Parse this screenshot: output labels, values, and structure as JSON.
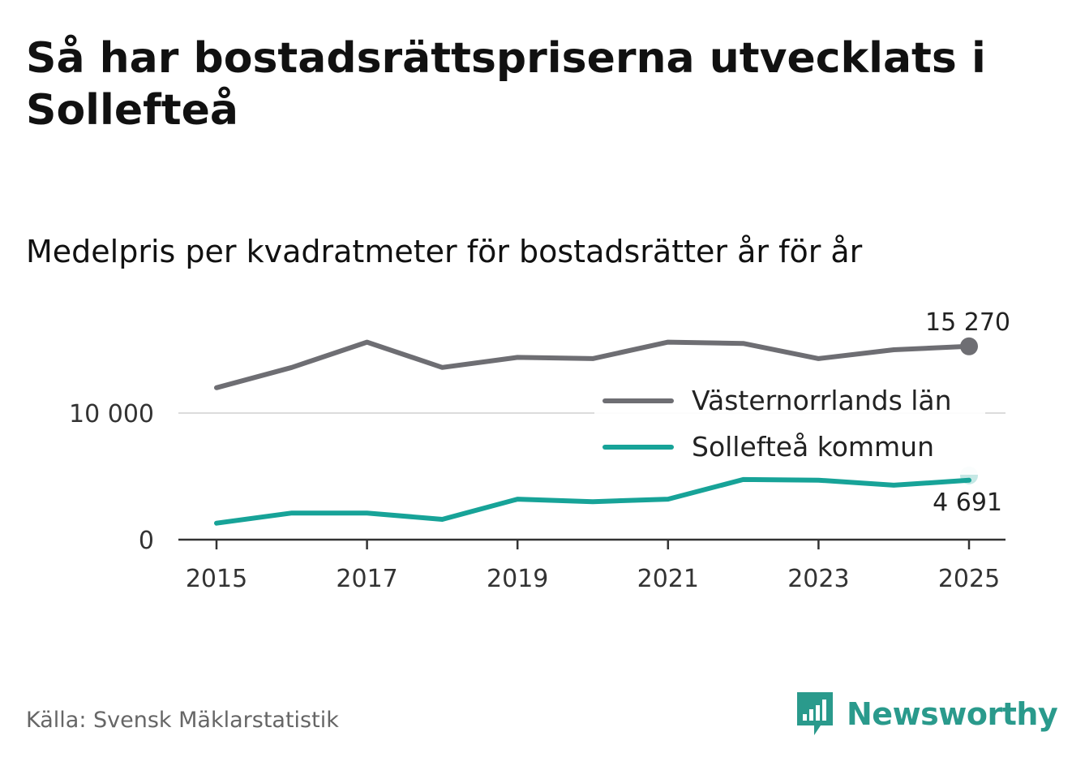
{
  "title": "Så har bostadsrättspriserna utvecklats i Sollefteå",
  "subtitle": "Medelpris per kvadratmeter för bostadsrätter år för år",
  "source": "Källa: Svensk Mäklarstatistik",
  "logo": {
    "text": "Newsworthy",
    "icon": "bar-chart-icon",
    "color": "#2a9a8c"
  },
  "chart_data": {
    "type": "line",
    "x": [
      2015,
      2016,
      2017,
      2018,
      2019,
      2020,
      2021,
      2022,
      2023,
      2024,
      2025
    ],
    "x_ticks": [
      "2015",
      "2017",
      "2019",
      "2021",
      "2023",
      "2025"
    ],
    "y_ticks": [
      {
        "value": 0,
        "label": "0"
      },
      {
        "value": 10000,
        "label": "10 000"
      }
    ],
    "ylim": [
      0,
      16500
    ],
    "grid": true,
    "legend_position": "right",
    "series": [
      {
        "name": "Västernorrlands län",
        "color": "#6e6e73",
        "values": [
          12000,
          13600,
          15600,
          13600,
          14400,
          14300,
          15600,
          15500,
          14300,
          15000,
          15270
        ],
        "end_label": "15 270"
      },
      {
        "name": "Sollefteå kommun",
        "color": "#17a398",
        "values": [
          1300,
          2100,
          2100,
          1600,
          3200,
          3000,
          3200,
          4750,
          4700,
          4300,
          4691
        ],
        "end_label": "4 691"
      }
    ]
  }
}
